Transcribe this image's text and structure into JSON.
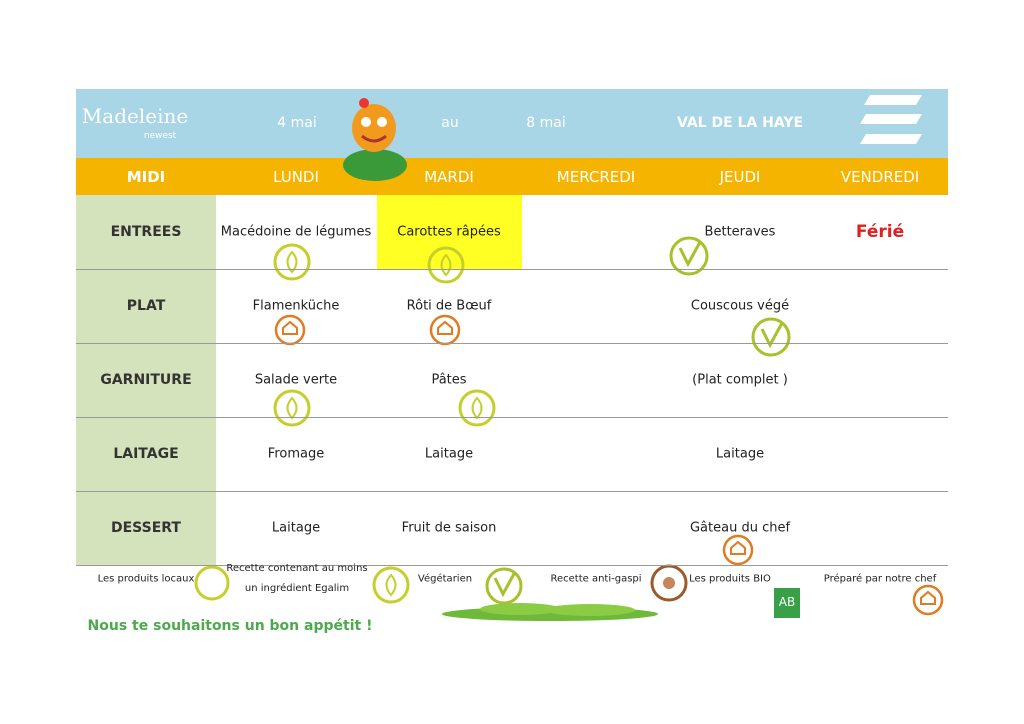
{
  "header": {
    "brand": "Madeleine",
    "brand_sub": "newest",
    "date_start": "4 mai",
    "date_sep": "au",
    "date_end": "8 mai",
    "site": "VAL DE LA HAYE"
  },
  "table": {
    "corner": "MIDI",
    "days": [
      "LUNDI",
      "MARDI",
      "MERCREDI",
      "JEUDI",
      "VENDREDI"
    ],
    "rows": [
      {
        "label": "ENTREES",
        "cells": [
          "Macédoine de légumes",
          "Carottes râpées",
          null,
          "Betteraves",
          "Férié"
        ]
      },
      {
        "label": "PLAT",
        "cells": [
          "Flamenküche",
          "Rôti de Bœuf",
          null,
          "Couscous végé",
          null
        ]
      },
      {
        "label": "GARNITURE",
        "cells": [
          "Salade verte",
          "Pâtes",
          null,
          "(Plat complet )",
          null
        ]
      },
      {
        "label": "LAITAGE",
        "cells": [
          "Fromage",
          "Laitage",
          null,
          "Laitage",
          null
        ]
      },
      {
        "label": "DESSERT",
        "cells": [
          "Laitage",
          "Fruit de saison",
          null,
          "Gâteau du chef",
          null
        ]
      }
    ]
  },
  "legend": [
    "Les produits locaux",
    "Recette contenant au moins un ingrédient Egalim",
    "Végétarien",
    "Recette anti-gaspi",
    "Les produits BIO",
    "Préparé par notre chef"
  ],
  "footer": "Nous te souhaitons un bon appétit !"
}
